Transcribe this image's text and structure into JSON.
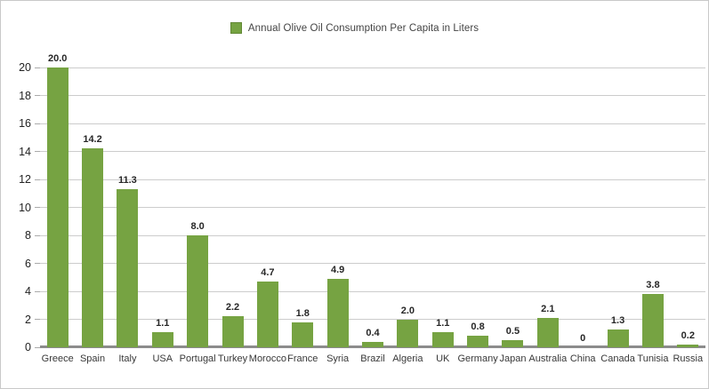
{
  "chart_data": {
    "type": "bar",
    "title": "",
    "legend_label": "Annual Olive Oil Consumption Per Capita in Liters",
    "legend_position": "top-center",
    "categories": [
      "Greece",
      "Spain",
      "Italy",
      "USA",
      "Portugal",
      "Turkey",
      "Morocco",
      "France",
      "Syria",
      "Brazil",
      "Algeria",
      "UK",
      "Germany",
      "Japan",
      "Australia",
      "China",
      "Canada",
      "Tunisia",
      "Russia"
    ],
    "values": [
      20.0,
      14.2,
      11.3,
      1.1,
      8.0,
      2.2,
      4.7,
      1.8,
      4.9,
      0.4,
      2.0,
      1.1,
      0.8,
      0.5,
      2.1,
      0,
      1.3,
      3.8,
      0.2
    ],
    "value_labels": [
      "20.0",
      "14.2",
      "11.3",
      "1.1",
      "8.0",
      "2.2",
      "4.7",
      "1.8",
      "4.9",
      "0.4",
      "2.0",
      "1.1",
      "0.8",
      "0.5",
      "2.1",
      "0",
      "1.3",
      "3.8",
      "0.2"
    ],
    "xlabel": "",
    "ylabel": "",
    "ylim": [
      0,
      20
    ],
    "yticks": [
      0,
      2,
      4,
      6,
      8,
      10,
      12,
      14,
      16,
      18,
      20
    ],
    "grid": true,
    "bar_color": "#76a342",
    "gridline_color": "#cccccc",
    "baseline_color": "#8c8c8c"
  }
}
